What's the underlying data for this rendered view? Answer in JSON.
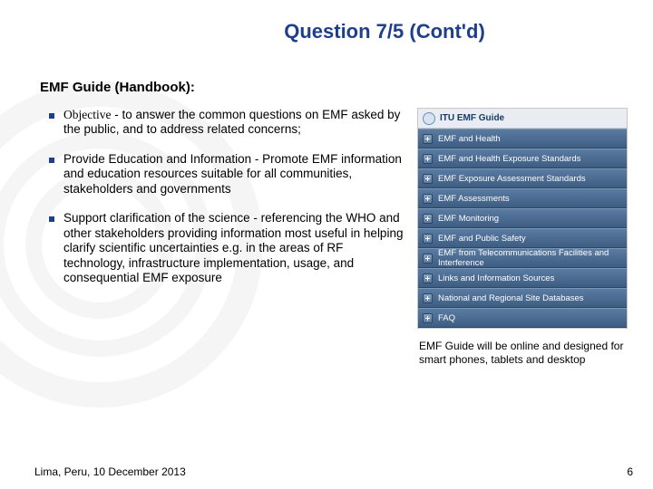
{
  "title": "Question 7/5 (Cont'd)",
  "subtitle": "EMF Guide (Handbook):",
  "bullets": [
    {
      "lead": "Objective",
      "body": " - to answer the common questions on EMF asked by the public, and to address related concerns;"
    },
    {
      "lead": "Provide Education and Information -",
      "body": " Promote EMF information and education resources suitable for all communities, stakeholders and governments"
    },
    {
      "lead": "Support clarification of the science -",
      "body": " referencing the WHO and other stakeholders providing information most useful in helping clarify scientific uncertainties e.g. in the areas of RF technology, infrastructure implementation, usage, and consequential EMF exposure"
    }
  ],
  "panel": {
    "header": "ITU EMF Guide",
    "items": [
      "EMF and Health",
      "EMF and Health Exposure Standards",
      "EMF Exposure Assessment Standards",
      "EMF Assessments",
      "EMF Monitoring",
      "EMF and Public Safety",
      "EMF from Telecommunications Facilities and Interference",
      "Links and Information Sources",
      "National and Regional Site Databases",
      "FAQ"
    ]
  },
  "caption": "EMF Guide will be online and designed for smart phones, tablets and desktop",
  "footer": "Lima, Peru, 10 December 2013",
  "pagenum": "6"
}
